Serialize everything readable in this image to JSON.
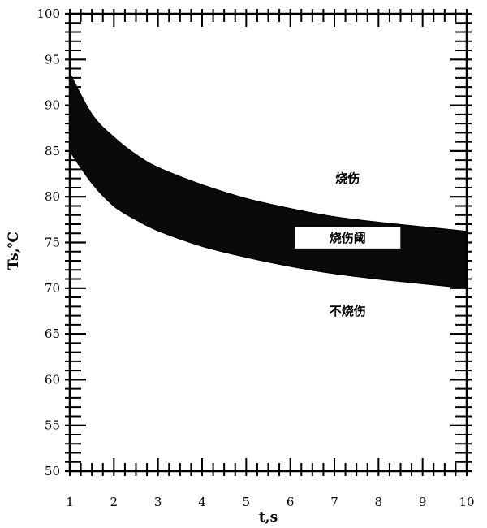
{
  "chart_data": {
    "type": "area",
    "title": "",
    "xlabel": "t,s",
    "ylabel": "Ts,℃",
    "xlim": [
      1,
      10
    ],
    "ylim": [
      50,
      100
    ],
    "x_ticks": [
      "1",
      "2",
      "3",
      "4",
      "5",
      "6",
      "7",
      "8",
      "9",
      "10"
    ],
    "y_ticks": [
      "50",
      "55",
      "60",
      "65",
      "70",
      "75",
      "80",
      "85",
      "90",
      "95",
      "100"
    ],
    "grid": false,
    "series": [
      {
        "role": "upper",
        "x": [
          1,
          1.5,
          2,
          2.5,
          3,
          4,
          5,
          6,
          7,
          8,
          9,
          10
        ],
        "y": [
          93.5,
          89,
          86.5,
          84.6,
          83.2,
          81.3,
          79.8,
          78.7,
          77.8,
          77.2,
          76.7,
          76.2
        ]
      },
      {
        "role": "lower",
        "x": [
          1,
          1.5,
          2,
          2.5,
          3,
          4,
          5,
          6,
          7,
          8,
          9,
          10
        ],
        "y": [
          85,
          81.5,
          79,
          77.5,
          76.3,
          74.6,
          73.4,
          72.4,
          71.6,
          71,
          70.5,
          70
        ]
      }
    ],
    "annotations": [
      {
        "text": "烧伤",
        "x": 7.3,
        "y": 82
      },
      {
        "text": "烧伤阈",
        "x": 7.3,
        "y": 75.5
      },
      {
        "text": "不烧伤",
        "x": 7.3,
        "y": 67.5
      }
    ],
    "colors": {
      "band": "#0a0a0a",
      "axis": "#000000",
      "background": "#ffffff"
    }
  }
}
